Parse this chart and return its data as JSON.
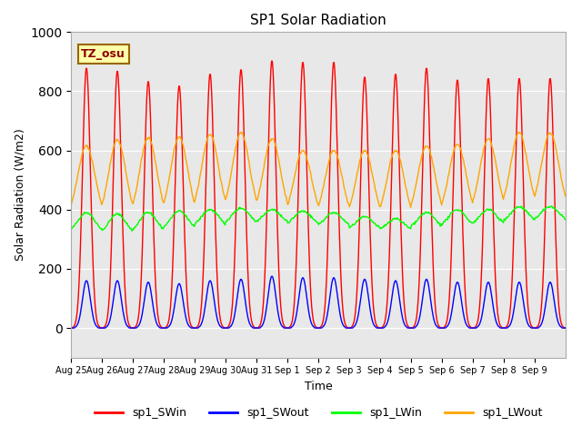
{
  "title": "SP1 Solar Radiation",
  "ylabel": "Solar Radiation (W/m2)",
  "xlabel": "Time",
  "ylim": [
    -100,
    1000
  ],
  "bg_color": "#e8e8e8",
  "grid_color": "white",
  "tz_label": "TZ_osu",
  "series": [
    "sp1_SWin",
    "sp1_SWout",
    "sp1_LWin",
    "sp1_LWout"
  ],
  "colors": [
    "red",
    "blue",
    "lime",
    "orange"
  ],
  "x_ticks": [
    "Aug 25",
    "Aug 26",
    "Aug 27",
    "Aug 28",
    "Aug 29",
    "Aug 30",
    "Aug 31",
    "Sep 1",
    "Sep 2",
    "Sep 3",
    "Sep 4",
    "Sep 5",
    "Sep 6",
    "Sep 7",
    "Sep 8",
    "Sep 9"
  ],
  "n_days": 16,
  "pts_per_day": 48,
  "SWin_peaks": [
    880,
    870,
    835,
    820,
    860,
    875,
    905,
    900,
    900,
    850,
    860,
    880,
    840,
    845,
    845,
    845
  ],
  "SWout_peaks": [
    160,
    160,
    155,
    150,
    160,
    165,
    175,
    170,
    170,
    165,
    160,
    165,
    155,
    155,
    155,
    155
  ],
  "LWin_base": [
    320,
    315,
    320,
    330,
    340,
    350,
    350,
    345,
    340,
    330,
    325,
    335,
    340,
    345,
    355,
    360
  ],
  "LWin_day_bump": [
    70,
    70,
    70,
    65,
    60,
    55,
    50,
    50,
    50,
    45,
    45,
    55,
    60,
    55,
    55,
    50
  ],
  "LWout_base": [
    370,
    365,
    365,
    370,
    375,
    380,
    375,
    370,
    365,
    360,
    360,
    370,
    375,
    380,
    390,
    395
  ],
  "LWout_peaks": [
    615,
    635,
    645,
    645,
    655,
    660,
    640,
    600,
    600,
    600,
    600,
    615,
    620,
    640,
    660,
    660
  ]
}
